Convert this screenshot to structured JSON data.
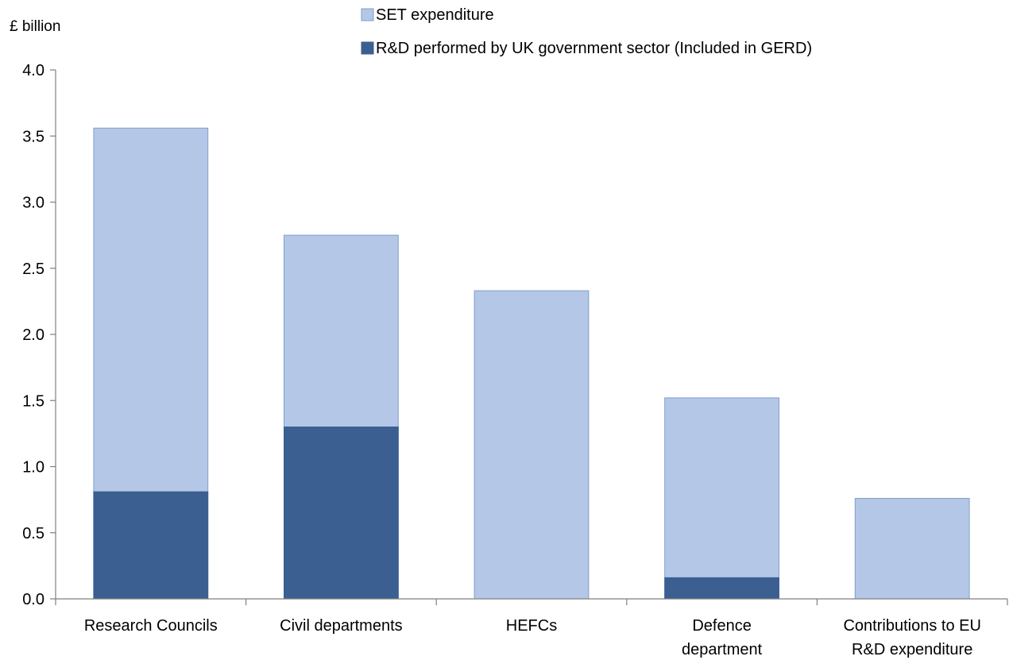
{
  "chart_data": {
    "type": "bar",
    "stacked": false,
    "overlapped": true,
    "ylabel": "£ billion",
    "xlabel": "",
    "ylim": [
      0,
      4.0
    ],
    "yticks": [
      "0.0",
      "0.5",
      "1.0",
      "1.5",
      "2.0",
      "2.5",
      "3.0",
      "3.5",
      "4.0"
    ],
    "ytick_values": [
      0,
      0.5,
      1.0,
      1.5,
      2.0,
      2.5,
      3.0,
      3.5,
      4.0
    ],
    "grid": false,
    "legend_position": "top",
    "categories": [
      [
        "Research Councils"
      ],
      [
        "Civil departments"
      ],
      [
        "HEFCs"
      ],
      [
        "Defence",
        "department"
      ],
      [
        "Contributions to EU",
        "R&D expenditure"
      ]
    ],
    "series": [
      {
        "name": "SET expenditure",
        "color": "#b4c7e7",
        "values": [
          3.56,
          2.75,
          2.33,
          1.52,
          0.76
        ]
      },
      {
        "name": "R&D performed by UK government sector (Included in GERD)",
        "color": "#3b5f91",
        "values": [
          0.81,
          1.3,
          0.0,
          0.16,
          0.0
        ]
      }
    ],
    "outline_color": "#7f9fcc",
    "axis_color": "#808080"
  }
}
